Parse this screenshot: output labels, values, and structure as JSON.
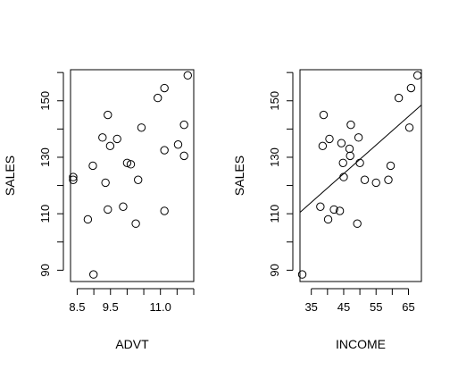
{
  "chart_data": [
    {
      "type": "scatter",
      "xlabel": "ADVT",
      "ylabel": "SALES",
      "xlim": [
        8.3,
        12.0
      ],
      "ylim": [
        86,
        161
      ],
      "xticks": [
        8.5,
        9.5,
        11.0
      ],
      "xtick_labels": [
        "8.5",
        "9.5",
        "11.0"
      ],
      "xtick_marks": [
        8.5,
        9.0,
        9.5,
        10.0,
        10.5,
        11.0,
        11.5,
        12.0
      ],
      "yticks": [
        90,
        110,
        130,
        150
      ],
      "ytick_labels": [
        "90",
        "110",
        "130",
        "150"
      ],
      "ytick_marks": [
        90,
        100,
        110,
        120,
        130,
        140,
        150,
        160
      ],
      "points": [
        {
          "x": 8.38,
          "y": 123.0
        },
        {
          "x": 8.38,
          "y": 122.0
        },
        {
          "x": 8.82,
          "y": 108.0
        },
        {
          "x": 8.97,
          "y": 127.0
        },
        {
          "x": 8.99,
          "y": 88.5
        },
        {
          "x": 9.26,
          "y": 137.0
        },
        {
          "x": 9.35,
          "y": 121.0
        },
        {
          "x": 9.42,
          "y": 145.0
        },
        {
          "x": 9.42,
          "y": 111.5
        },
        {
          "x": 9.49,
          "y": 134.0
        },
        {
          "x": 9.7,
          "y": 136.5
        },
        {
          "x": 9.88,
          "y": 112.5
        },
        {
          "x": 10.0,
          "y": 128.0
        },
        {
          "x": 10.11,
          "y": 127.5
        },
        {
          "x": 10.26,
          "y": 106.5
        },
        {
          "x": 10.33,
          "y": 122.0
        },
        {
          "x": 10.43,
          "y": 140.5
        },
        {
          "x": 10.92,
          "y": 151.0
        },
        {
          "x": 11.12,
          "y": 154.5
        },
        {
          "x": 11.12,
          "y": 132.5
        },
        {
          "x": 11.12,
          "y": 111.0
        },
        {
          "x": 11.53,
          "y": 134.5
        },
        {
          "x": 11.71,
          "y": 141.5
        },
        {
          "x": 11.71,
          "y": 130.5
        },
        {
          "x": 11.82,
          "y": 159.0
        }
      ]
    },
    {
      "type": "scatter",
      "xlabel": "INCOME",
      "ylabel": "SALES",
      "xlim": [
        31.5,
        69
      ],
      "ylim": [
        86,
        161
      ],
      "xticks": [
        35,
        45,
        55,
        65
      ],
      "xtick_labels": [
        "35",
        "45",
        "55",
        "65"
      ],
      "xtick_marks": [
        35,
        40,
        45,
        50,
        55,
        60,
        65
      ],
      "yticks": [
        90,
        110,
        130,
        150
      ],
      "ytick_labels": [
        "90",
        "110",
        "130",
        "150"
      ],
      "ytick_marks": [
        90,
        100,
        110,
        120,
        130,
        140,
        150,
        160
      ],
      "points": [
        {
          "x": 32.2,
          "y": 88.5
        },
        {
          "x": 37.8,
          "y": 112.5
        },
        {
          "x": 38.5,
          "y": 134.0
        },
        {
          "x": 38.8,
          "y": 145.0
        },
        {
          "x": 40.2,
          "y": 108.0
        },
        {
          "x": 40.6,
          "y": 136.5
        },
        {
          "x": 42.0,
          "y": 111.5
        },
        {
          "x": 43.8,
          "y": 111.0
        },
        {
          "x": 44.3,
          "y": 135.0
        },
        {
          "x": 44.8,
          "y": 128.0
        },
        {
          "x": 45.0,
          "y": 123.0
        },
        {
          "x": 46.8,
          "y": 133.0
        },
        {
          "x": 47.0,
          "y": 130.5
        },
        {
          "x": 47.2,
          "y": 141.5
        },
        {
          "x": 49.2,
          "y": 106.5
        },
        {
          "x": 49.6,
          "y": 137.0
        },
        {
          "x": 50.0,
          "y": 128.0
        },
        {
          "x": 51.5,
          "y": 122.0
        },
        {
          "x": 55.0,
          "y": 121.0
        },
        {
          "x": 58.8,
          "y": 122.0
        },
        {
          "x": 59.5,
          "y": 127.0
        },
        {
          "x": 62.0,
          "y": 151.0
        },
        {
          "x": 65.3,
          "y": 140.5
        },
        {
          "x": 65.8,
          "y": 154.5
        },
        {
          "x": 67.8,
          "y": 159.0
        }
      ],
      "regression_line": {
        "x": [
          31.5,
          69
        ],
        "y": [
          110.5,
          148.5
        ]
      }
    }
  ]
}
